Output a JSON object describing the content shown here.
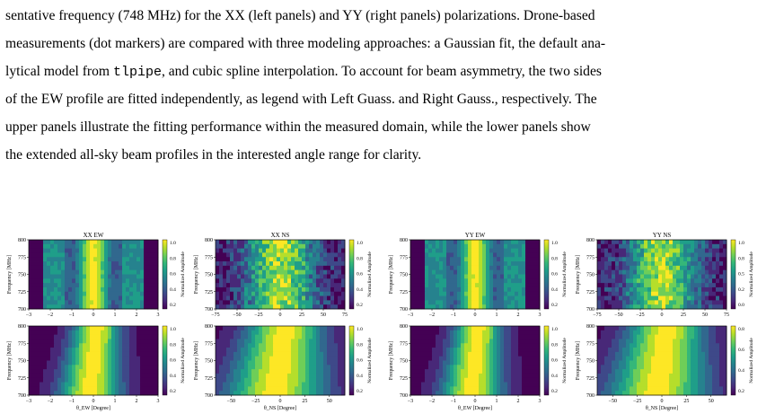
{
  "caption": {
    "lines": [
      {
        "pre": "sentative frequency (748 MHz) for the XX (left panels) and YY (right panels) polarizations. Drone-based",
        "code": "",
        "post": ""
      },
      {
        "pre": "measurements (dot markers) are compared with three modeling approaches: a Gaussian fit, the default ana-",
        "code": "",
        "post": ""
      },
      {
        "pre": "lytical model from ",
        "code": "tlpipe",
        "post": ", and cubic spline interpolation. To account for beam asymmetry, the two sides"
      },
      {
        "pre": "of the EW profile are fitted independently, as legend with Left Guass. and Right Gauss., respectively. The",
        "code": "",
        "post": ""
      },
      {
        "pre": "upper panels illustrate the fitting performance within the measured domain, while the lower panels show",
        "code": "",
        "post": ""
      },
      {
        "pre": "the extended all-sky beam profiles in the interested angle range for clarity.",
        "code": "",
        "post": ""
      }
    ]
  },
  "figure": {
    "ylabel": "Frequency [MHz]",
    "cbar_label": "Normalized Amplitude",
    "panels": [
      {
        "title": "XX  EW",
        "kind": "ew_meas",
        "xticks": [
          "−3",
          "−2",
          "−1",
          "0",
          "1",
          "2",
          "3"
        ],
        "xlabel": "",
        "cbar": [
          "1.0",
          "0.8",
          "0.6",
          "0.4",
          "0.2"
        ]
      },
      {
        "title": "XX  NS",
        "kind": "ns_meas",
        "xticks": [
          "−75",
          "−50",
          "−25",
          "0",
          "25",
          "50",
          "75"
        ],
        "xlabel": "",
        "cbar": [
          "1.0",
          "0.8",
          "0.6",
          "0.4",
          "0.2"
        ]
      },
      {
        "title": "YY  EW",
        "kind": "ew_meas",
        "xticks": [
          "−3",
          "−2",
          "−1",
          "0",
          "1",
          "2",
          "3"
        ],
        "xlabel": "",
        "cbar": [
          "1.0",
          "0.8",
          "0.6",
          "0.4",
          "0.2"
        ]
      },
      {
        "title": "YY  NS",
        "kind": "ns_meas",
        "xticks": [
          "−75",
          "−50",
          "−25",
          "0",
          "25",
          "50",
          "75"
        ],
        "xlabel": "",
        "cbar": [
          "1.0",
          "0.8",
          "0.5",
          "0.2",
          "0.0"
        ]
      },
      {
        "title": "",
        "kind": "ew_model",
        "xticks": [
          "−3",
          "−2",
          "−1",
          "0",
          "1",
          "2",
          "3"
        ],
        "xlabel": "θ_EW [Degree]",
        "cbar": [
          "1.0",
          "0.8",
          "0.6",
          "0.4",
          "0.2"
        ]
      },
      {
        "title": "",
        "kind": "ns_model",
        "xticks": [
          "−50",
          "−25",
          "0",
          "25",
          "50"
        ],
        "xlabel": "θ_NS [Degree]",
        "cbar": [
          "1.0",
          "0.8",
          "0.6",
          "0.4",
          "0.2"
        ]
      },
      {
        "title": "",
        "kind": "ew_model",
        "xticks": [
          "−3",
          "−2",
          "−1",
          "0",
          "1",
          "2",
          "3"
        ],
        "xlabel": "θ_EW [Degree]",
        "cbar": [
          "1.0",
          "0.8",
          "0.6",
          "0.4",
          "0.2"
        ]
      },
      {
        "title": "",
        "kind": "ns_model",
        "xticks": [
          "−50",
          "−25",
          "0",
          "25",
          "50"
        ],
        "xlabel": "θ_NS [Degree]",
        "cbar": [
          "0.8",
          "0.6",
          "0.4",
          "0.2"
        ]
      }
    ],
    "yticks": [
      "800",
      "775",
      "750",
      "725",
      "700"
    ],
    "colormap": [
      "#440154",
      "#482878",
      "#3e4989",
      "#31688e",
      "#26828e",
      "#1f9e89",
      "#35b779",
      "#6ece58",
      "#b5de2b",
      "#fde725"
    ]
  }
}
